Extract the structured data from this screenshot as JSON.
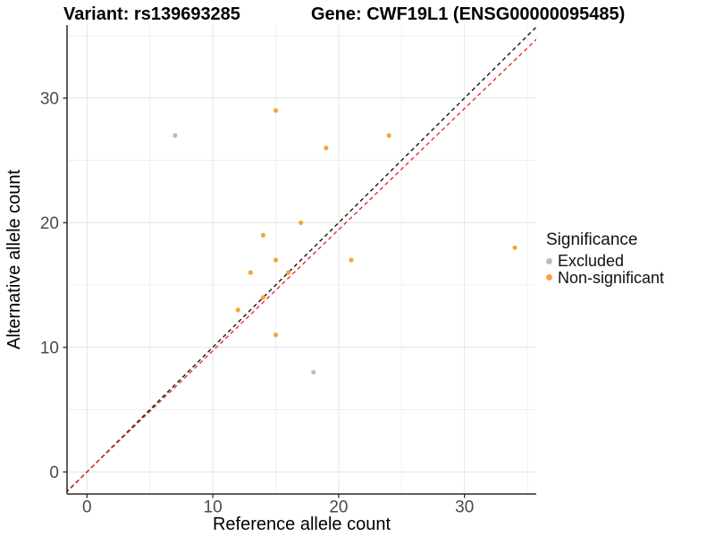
{
  "chart_data": {
    "type": "scatter",
    "title_variant": "Variant: rs139693285",
    "title_gene": "Gene: CWF19L1 (ENSG00000095485)",
    "xlabel": "Reference allele count",
    "ylabel": "Alternative allele count",
    "xlim": [
      -1.6,
      35.8
    ],
    "ylim": [
      -1.8,
      35.9
    ],
    "xticks": [
      0,
      10,
      20,
      30
    ],
    "yticks": [
      0,
      10,
      20,
      30
    ],
    "minor_ticks": [
      5,
      15,
      25,
      35
    ],
    "grid": true,
    "legend_position": "right",
    "series": [
      {
        "name": "Excluded",
        "color": "#bcbcbc",
        "points": [
          [
            7,
            27
          ],
          [
            18,
            8
          ]
        ]
      },
      {
        "name": "Non-significant",
        "color": "#f9a33a",
        "points": [
          [
            15,
            29
          ],
          [
            24,
            27
          ],
          [
            19,
            26
          ],
          [
            17,
            20
          ],
          [
            14,
            19
          ],
          [
            15,
            17
          ],
          [
            21,
            17
          ],
          [
            16,
            16
          ],
          [
            13,
            16
          ],
          [
            14,
            14
          ],
          [
            12,
            13
          ],
          [
            15,
            11
          ],
          [
            34,
            18
          ]
        ]
      }
    ],
    "lines": [
      {
        "name": "identity-line",
        "slope": 1,
        "intercept": 0,
        "color": "#141414",
        "style": "dashed"
      },
      {
        "name": "expected-ratio-line",
        "slope": 0.972,
        "intercept": 0,
        "color": "#e8302a",
        "style": "dashed"
      }
    ],
    "legend": {
      "title": "Significance",
      "items": [
        {
          "label": "Excluded",
          "color": "#bcbcbc"
        },
        {
          "label": "Non-significant",
          "color": "#f9a33a"
        }
      ]
    }
  }
}
